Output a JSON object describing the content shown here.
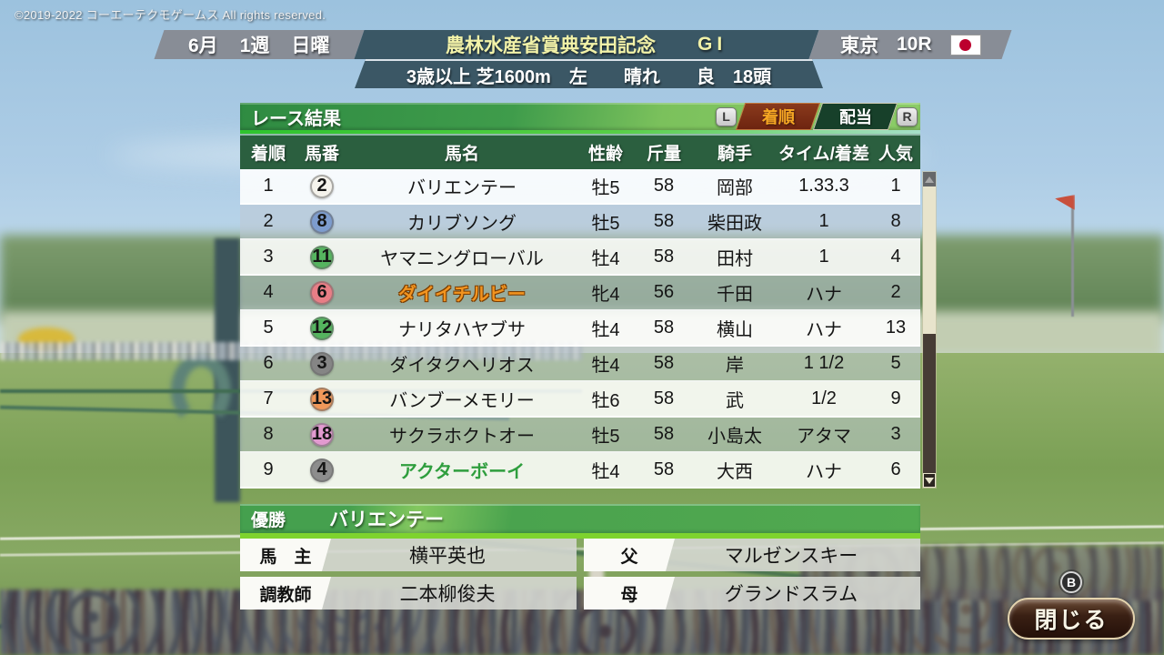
{
  "copyright": "©2019-2022 コーエーテクモゲームス All rights reserved.",
  "header": {
    "date": {
      "month": "6月",
      "week": "1週",
      "day": "日曜"
    },
    "race": {
      "title": "農林水産省賞典安田記念",
      "grade": "GI"
    },
    "venue": {
      "track": "東京",
      "race_no": "10R",
      "flag": "japan-flag"
    },
    "conditions": "3歳以上 芝1600m　左　　晴れ　　良　18頭"
  },
  "panel": {
    "title": "レース結果",
    "left_bumper": "L",
    "right_bumper": "R",
    "tabs": [
      {
        "label": "着順",
        "active": true
      },
      {
        "label": "配当",
        "active": false
      }
    ]
  },
  "table": {
    "headers": [
      "着順",
      "馬番",
      "馬名",
      "性齢",
      "斤量",
      "騎手",
      "タイム/着差",
      "人気"
    ],
    "rows": [
      {
        "rank": "1",
        "number": "2",
        "frame_color": "#f5f3ec",
        "name": "バリエンテー",
        "name_style": "",
        "sex_age": "牡5",
        "weight": "58",
        "jockey": "岡部",
        "time_margin": "1.33.3",
        "popularity": "1"
      },
      {
        "rank": "2",
        "number": "8",
        "frame_color": "#7d9cce",
        "name": "カリブソング",
        "name_style": "",
        "sex_age": "牡5",
        "weight": "58",
        "jockey": "柴田政",
        "time_margin": "1",
        "popularity": "8"
      },
      {
        "rank": "3",
        "number": "11",
        "frame_color": "#55b45f",
        "name": "ヤマニングローバル",
        "name_style": "",
        "sex_age": "牡4",
        "weight": "58",
        "jockey": "田村",
        "time_margin": "1",
        "popularity": "4"
      },
      {
        "rank": "4",
        "number": "6",
        "frame_color": "#e87e86",
        "name": "ダイイチルビー",
        "name_style": "orange",
        "sex_age": "牝4",
        "weight": "56",
        "jockey": "千田",
        "time_margin": "ハナ",
        "popularity": "2"
      },
      {
        "rank": "5",
        "number": "12",
        "frame_color": "#55b45f",
        "name": "ナリタハヤブサ",
        "name_style": "",
        "sex_age": "牡4",
        "weight": "58",
        "jockey": "横山",
        "time_margin": "ハナ",
        "popularity": "13"
      },
      {
        "rank": "6",
        "number": "3",
        "frame_color": "#858585",
        "name": "ダイタクヘリオス",
        "name_style": "",
        "sex_age": "牡4",
        "weight": "58",
        "jockey": "岸",
        "time_margin": "1 1/2",
        "popularity": "5"
      },
      {
        "rank": "7",
        "number": "13",
        "frame_color": "#f0985a",
        "name": "バンブーメモリー",
        "name_style": "",
        "sex_age": "牡6",
        "weight": "58",
        "jockey": "武",
        "time_margin": "1/2",
        "popularity": "9"
      },
      {
        "rank": "8",
        "number": "18",
        "frame_color": "#e29ad0",
        "name": "サクラホクトオー",
        "name_style": "",
        "sex_age": "牡5",
        "weight": "58",
        "jockey": "小島太",
        "time_margin": "アタマ",
        "popularity": "3"
      },
      {
        "rank": "9",
        "number": "4",
        "frame_color": "#8d8d8d",
        "name": "アクターボーイ",
        "name_style": "green",
        "sex_age": "牡4",
        "weight": "58",
        "jockey": "大西",
        "time_margin": "ハナ",
        "popularity": "6"
      }
    ]
  },
  "winner": {
    "label": "優勝",
    "name": "バリエンテー"
  },
  "details": [
    {
      "label": "馬　主",
      "value": "横平英也"
    },
    {
      "label": "父",
      "value": "マルゼンスキー"
    },
    {
      "label": "調教師",
      "value": "二本柳俊夫"
    },
    {
      "label": "母",
      "value": "グランドスラム"
    }
  ],
  "close_button": {
    "label": "閉じる",
    "hint": "B"
  },
  "colors": {
    "panel_green": "#3f9c4b",
    "table_header_green": "#2b5f3f",
    "active_tab_maroon": "#7c2b12",
    "active_tab_text": "#f5a623",
    "race_title_yellow": "#f2f2a8",
    "highlight_orange": "#f29420",
    "highlight_green": "#2f9e3e",
    "underline_green": "#2ec42e",
    "winner_underline_green": "#7ed32e",
    "close_button_brown": "#3a2014",
    "flag_red": "#bc002d"
  }
}
